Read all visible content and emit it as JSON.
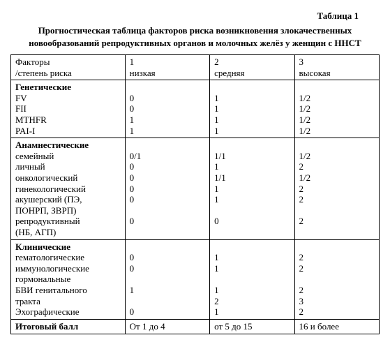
{
  "meta": {
    "table_label": "Таблица 1",
    "title_line1": "Прогностическая таблица факторов риска возникновения злокачественных",
    "title_line2": "новообразований репродуктивных органов и молочных желёз у женщин с ННСТ"
  },
  "header": {
    "c0_l1": "Факторы",
    "c0_l2": "/степень риска",
    "c1_l1": "1",
    "c1_l2": "низкая",
    "c2_l1": "2",
    "c2_l2": "средняя",
    "c3_l1": "3",
    "c3_l2": "высокая"
  },
  "section1": {
    "title": "Генетические",
    "rows": {
      "r0": {
        "label": "FV",
        "v1": "0",
        "v2": "1",
        "v3": "1/2"
      },
      "r1": {
        "label": "FII",
        "v1": "0",
        "v2": "1",
        "v3": "1/2"
      },
      "r2": {
        "label": "MTHFR",
        "v1": "1",
        "v2": "1",
        "v3": "1/2"
      },
      "r3": {
        "label": "PAI-I",
        "v1": "1",
        "v2": "1",
        "v3": "1/2"
      }
    }
  },
  "section2": {
    "title": "Анамнестические",
    "rows": {
      "r0": {
        "label": "семейный",
        "v1": "0/1",
        "v2": "1/1",
        "v3": "1/2"
      },
      "r1": {
        "label": "личный",
        "v1": "0",
        "v2": "1",
        "v3": "2"
      },
      "r2": {
        "label": "онкологический",
        "v1": "0",
        "v2": "1/1",
        "v3": "1/2"
      },
      "r3": {
        "label": "гинекологический",
        "v1": "0",
        "v2": "1",
        "v3": "2"
      },
      "r4": {
        "label_l1": "акушерский (ПЭ,",
        "label_l2": "ПОНРП, ЗВРП)",
        "v1": "0",
        "v2": "1",
        "v3": "2"
      },
      "r5": {
        "label_l1": "репродуктивный",
        "label_l2": "(НБ, АГП)",
        "v1": "0",
        "v2": "0",
        "v3": "2"
      }
    }
  },
  "section3": {
    "title": "Клинические",
    "rows": {
      "r0": {
        "label": "гематологические",
        "v1": "0",
        "v2": "1",
        "v3": "2"
      },
      "r1": {
        "label": "иммунологические",
        "v1": "0",
        "v2": "1",
        "v3": "2"
      },
      "r2": {
        "label": "гормональные",
        "v1": "",
        "v2": "",
        "v3": ""
      },
      "r3": {
        "label_l1": "БВИ генитального",
        "label_l2": "тракта",
        "v1": "1",
        "v2": "1",
        "v3": "2"
      },
      "r4_extra": {
        "v1": "",
        "v2": "2",
        "v3": "3"
      },
      "r5": {
        "label": "Эхографические",
        "v1": "0",
        "v2": "1",
        "v3": "2"
      }
    }
  },
  "footer": {
    "label": "Итоговый балл",
    "v1": "От 1  до  4",
    "v2": "от 5 до 15",
    "v3": "16 и более"
  }
}
